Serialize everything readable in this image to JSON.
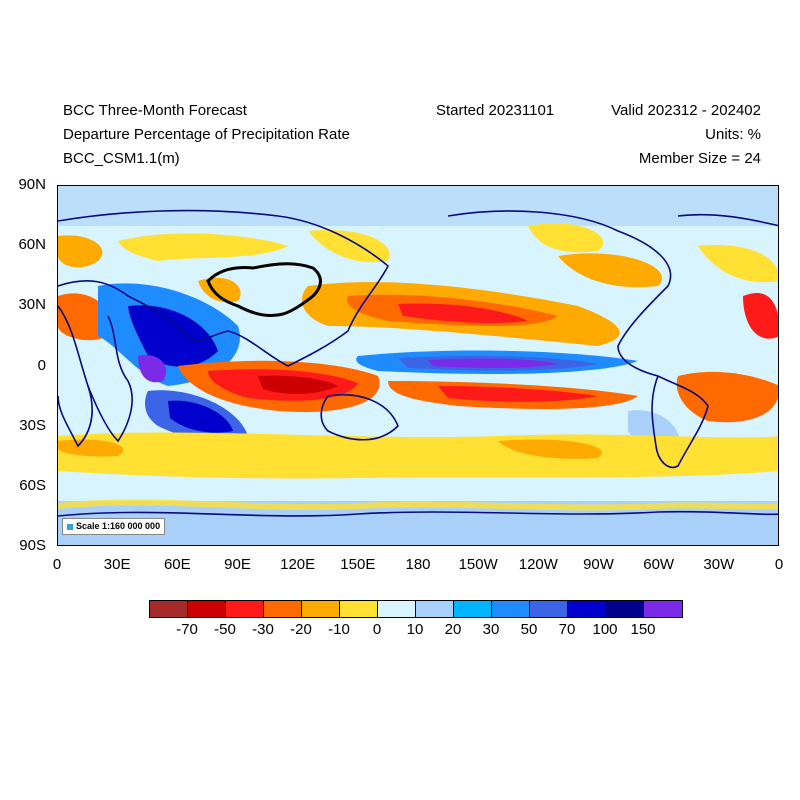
{
  "header": {
    "title": "BCC Three-Month Forecast",
    "variable": "Departure Percentage of Precipitation Rate",
    "model": "BCC_CSM1.1(m)",
    "started": "Started 20231101",
    "valid": "Valid 202312 - 202402",
    "units": "Units: %",
    "member_size": "Member Size = 24"
  },
  "map": {
    "lat_labels": [
      "90N",
      "60N",
      "30N",
      "0",
      "30S",
      "60S",
      "90S"
    ],
    "lon_labels": [
      "0",
      "30E",
      "60E",
      "90E",
      "120E",
      "150E",
      "180",
      "150W",
      "120W",
      "90W",
      "60W",
      "30W",
      "0"
    ],
    "scale_text": "Scale 1:160 000 000",
    "highlight_region": "China border",
    "background_color": "#d8f0fb"
  },
  "colorbar": {
    "colors": [
      "#a52a2a",
      "#cd0000",
      "#ff1a1a",
      "#ff6a00",
      "#ffaa00",
      "#ffe033",
      "#d8f4ff",
      "#a8d0f8",
      "#00b4ff",
      "#1e8cff",
      "#3c64e6",
      "#0000cd",
      "#00008b",
      "#7b2be8"
    ],
    "labels": [
      "-70",
      "-50",
      "-30",
      "-20",
      "-10",
      "0",
      "10",
      "20",
      "30",
      "50",
      "70",
      "100",
      "150"
    ]
  }
}
